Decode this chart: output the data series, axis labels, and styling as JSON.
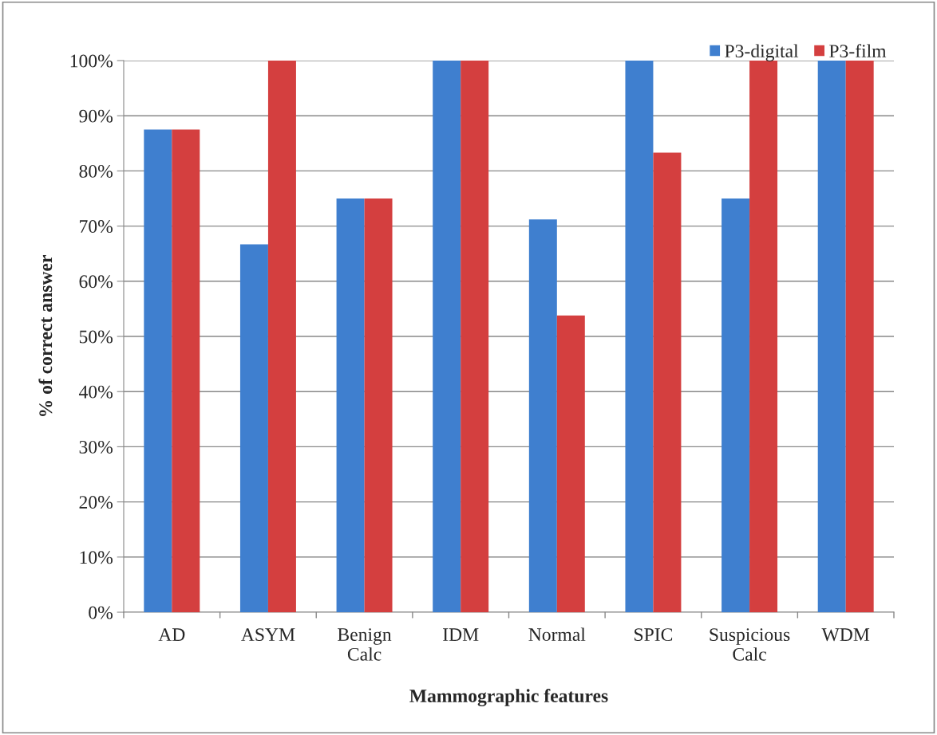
{
  "chart_data": {
    "type": "bar",
    "xlabel": "Mammographic features",
    "ylabel": "% of correct answer",
    "categories": [
      "AD",
      "ASYM",
      "Benign\nCalc",
      "IDM",
      "Normal",
      "SPIC",
      "Suspicious\nCalc",
      "WDM"
    ],
    "series": [
      {
        "name": "P3-digital",
        "color": "#3f7fcf",
        "values": [
          87.5,
          66.7,
          75,
          100,
          71.2,
          100,
          75,
          100
        ]
      },
      {
        "name": "P3-film",
        "color": "#d43f3f",
        "values": [
          87.5,
          100,
          75,
          100,
          53.8,
          83.3,
          100,
          100
        ]
      }
    ],
    "ylim": [
      0,
      100
    ],
    "yticks": [
      {
        "value": 0,
        "label": "0%"
      },
      {
        "value": 10,
        "label": "10%"
      },
      {
        "value": 20,
        "label": "20%"
      },
      {
        "value": 30,
        "label": "30%"
      },
      {
        "value": 40,
        "label": "40%"
      },
      {
        "value": 50,
        "label": "50%"
      },
      {
        "value": 60,
        "label": "60%"
      },
      {
        "value": 70,
        "label": "70%"
      },
      {
        "value": 80,
        "label": "80%"
      },
      {
        "value": 90,
        "label": "90%"
      },
      {
        "value": 100,
        "label": "100%"
      }
    ],
    "grid": "y",
    "legend": "top right"
  }
}
